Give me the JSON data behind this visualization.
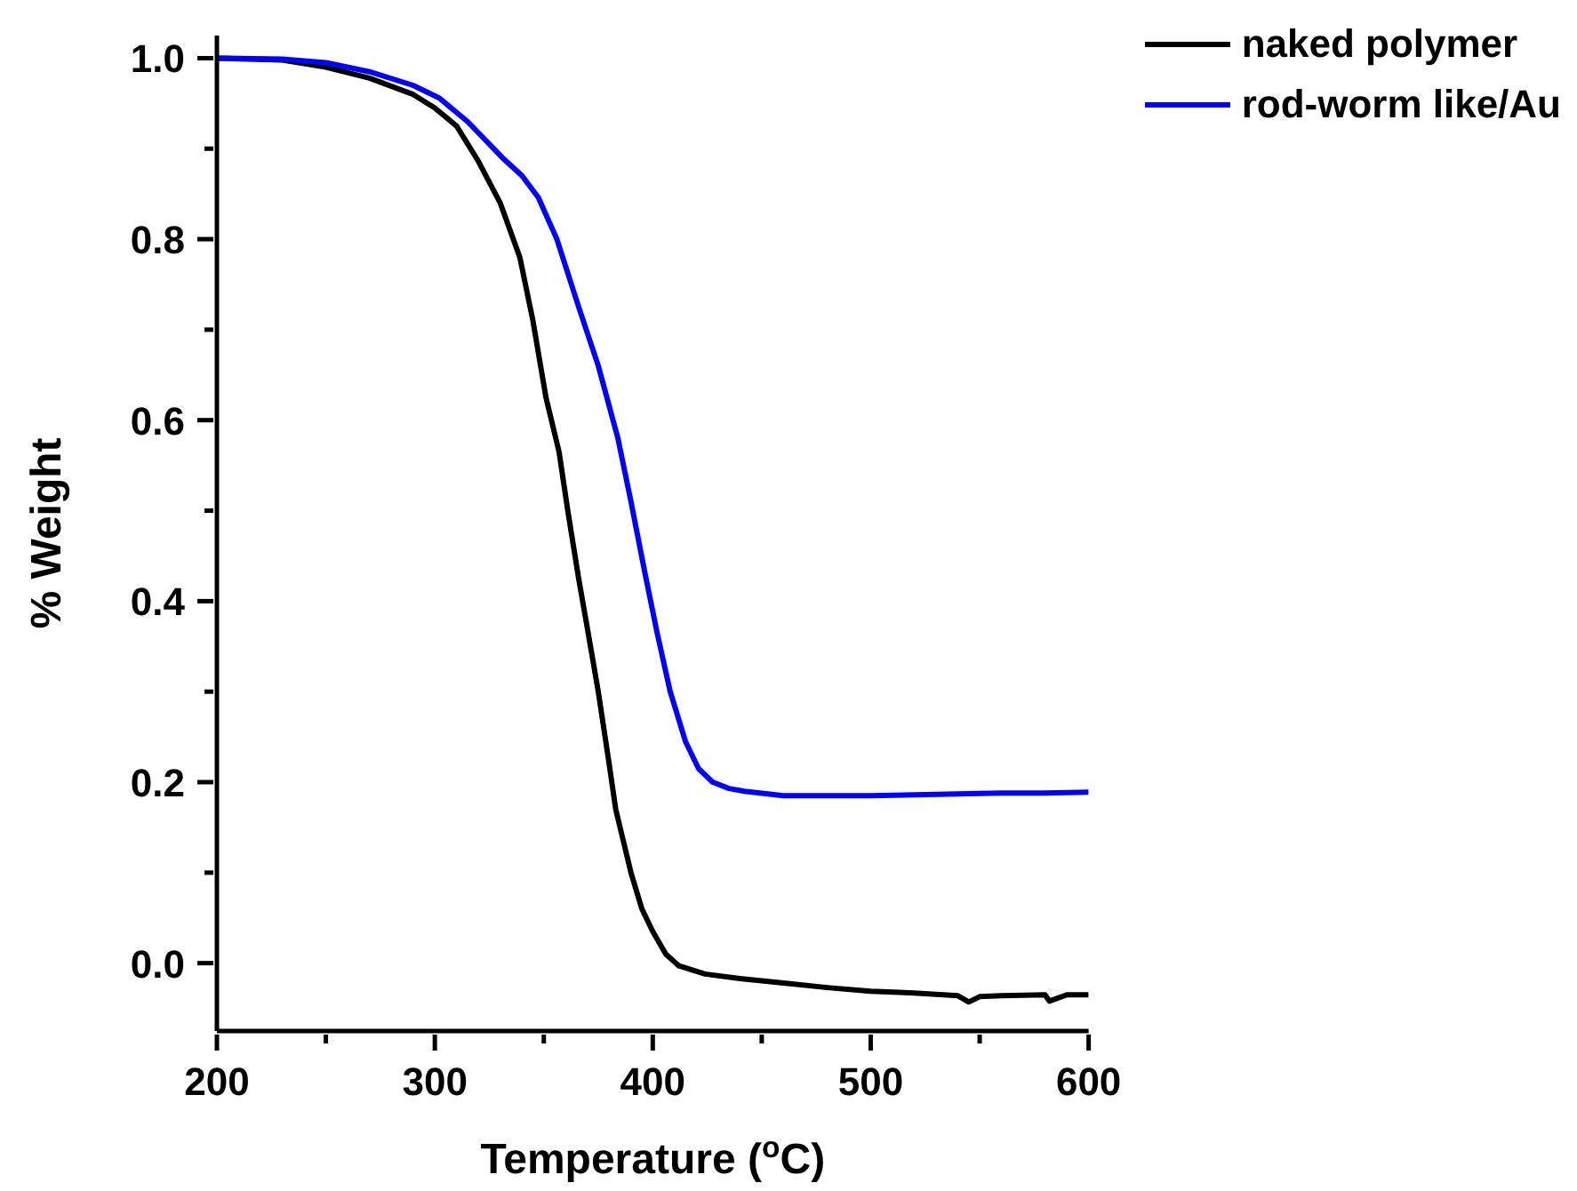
{
  "chart_data": {
    "type": "line",
    "xlabel": "Temperature ($^{o}$C)",
    "ylabel": "% Weight",
    "xlim": [
      200,
      600
    ],
    "ylim": [
      -0.075,
      1.025
    ],
    "xticks": [
      200,
      {
        "value": 250,
        "label": null
      },
      300,
      {
        "value": 350,
        "label": null
      },
      400,
      {
        "value": 450,
        "label": null
      },
      500,
      {
        "value": 550,
        "label": null
      },
      600
    ],
    "yticks": [
      {
        "value": 0,
        "label": "0.0"
      },
      {
        "value": 0.1,
        "label": null
      },
      0.2,
      {
        "value": 0.3,
        "label": null
      },
      0.4,
      {
        "value": 0.5,
        "label": null
      },
      0.6,
      {
        "value": 0.7,
        "label": null
      },
      0.8,
      {
        "value": 0.9,
        "label": null
      },
      {
        "value": 1,
        "label": "1.0"
      }
    ],
    "legend": "top right",
    "grid": false,
    "series": [
      {
        "name": "naked polymer",
        "color": "#000000",
        "x": [
          200,
          230,
          250,
          270,
          290,
          300,
          310,
          320,
          330,
          339,
          345,
          351,
          357,
          361,
          366,
          370,
          375,
          380,
          383,
          386,
          390,
          395,
          400,
          406,
          412,
          424,
          440,
          460,
          480,
          500,
          520,
          540,
          545,
          550,
          560,
          580,
          582,
          590,
          600
        ],
        "values": [
          1.0,
          0.998,
          0.99,
          0.978,
          0.96,
          0.945,
          0.925,
          0.886,
          0.84,
          0.78,
          0.71,
          0.625,
          0.565,
          0.5,
          0.425,
          0.37,
          0.3,
          0.22,
          0.17,
          0.14,
          0.1,
          0.06,
          0.035,
          0.01,
          -0.003,
          -0.012,
          -0.017,
          -0.022,
          -0.027,
          -0.031,
          -0.033,
          -0.036,
          -0.043,
          -0.037,
          -0.036,
          -0.035,
          -0.042,
          -0.035,
          -0.035
        ]
      },
      {
        "name": "rod-worm like/Au",
        "color": "#0000ff",
        "x": [
          200,
          230,
          250,
          270,
          290,
          302,
          315,
          331,
          340,
          347.5,
          356,
          366,
          375,
          384,
          390,
          396.5,
          402,
          408,
          415,
          421,
          427.5,
          435,
          442,
          460,
          480,
          500,
          520,
          540,
          560,
          580,
          600
        ],
        "values": [
          1.0,
          0.999,
          0.995,
          0.985,
          0.97,
          0.956,
          0.93,
          0.89,
          0.87,
          0.846,
          0.8,
          0.725,
          0.66,
          0.58,
          0.51,
          0.43,
          0.365,
          0.3,
          0.245,
          0.215,
          0.2,
          0.193,
          0.19,
          0.185,
          0.185,
          0.185,
          0.186,
          0.187,
          0.188,
          0.188,
          0.189
        ]
      }
    ]
  }
}
